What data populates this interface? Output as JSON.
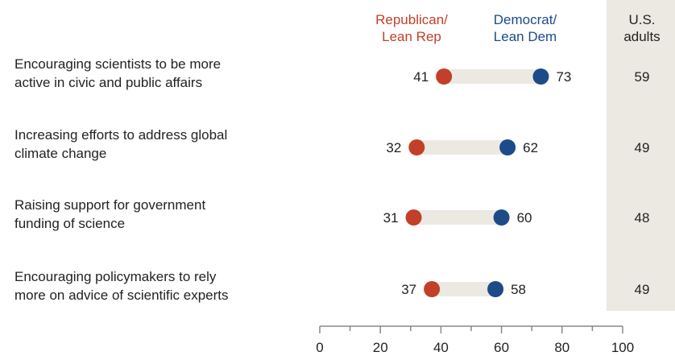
{
  "chart_data": {
    "type": "dot",
    "series": [
      {
        "name": "Republican/\nLean Rep",
        "color": "#c2402a",
        "values": [
          41,
          32,
          31,
          37
        ]
      },
      {
        "name": "Democrat/\nLean Dem",
        "color": "#1d4b87",
        "values": [
          73,
          62,
          60,
          58
        ]
      }
    ],
    "total_column": {
      "name": "U.S.\nadults",
      "values": [
        59,
        49,
        48,
        49
      ]
    },
    "categories": [
      "Encouraging scientists to be more\nactive in civic and public affairs",
      "Increasing efforts to address global\nclimate change",
      "Raising support for government\nfunding of science",
      "Encouraging policymakers to rely\nmore on advice of scientific experts"
    ],
    "xlim": [
      0,
      100
    ],
    "xticks": [
      0,
      20,
      40,
      60,
      80,
      100
    ],
    "xlabel": "",
    "ylabel": "",
    "grid": false,
    "legend": "top column headers"
  }
}
